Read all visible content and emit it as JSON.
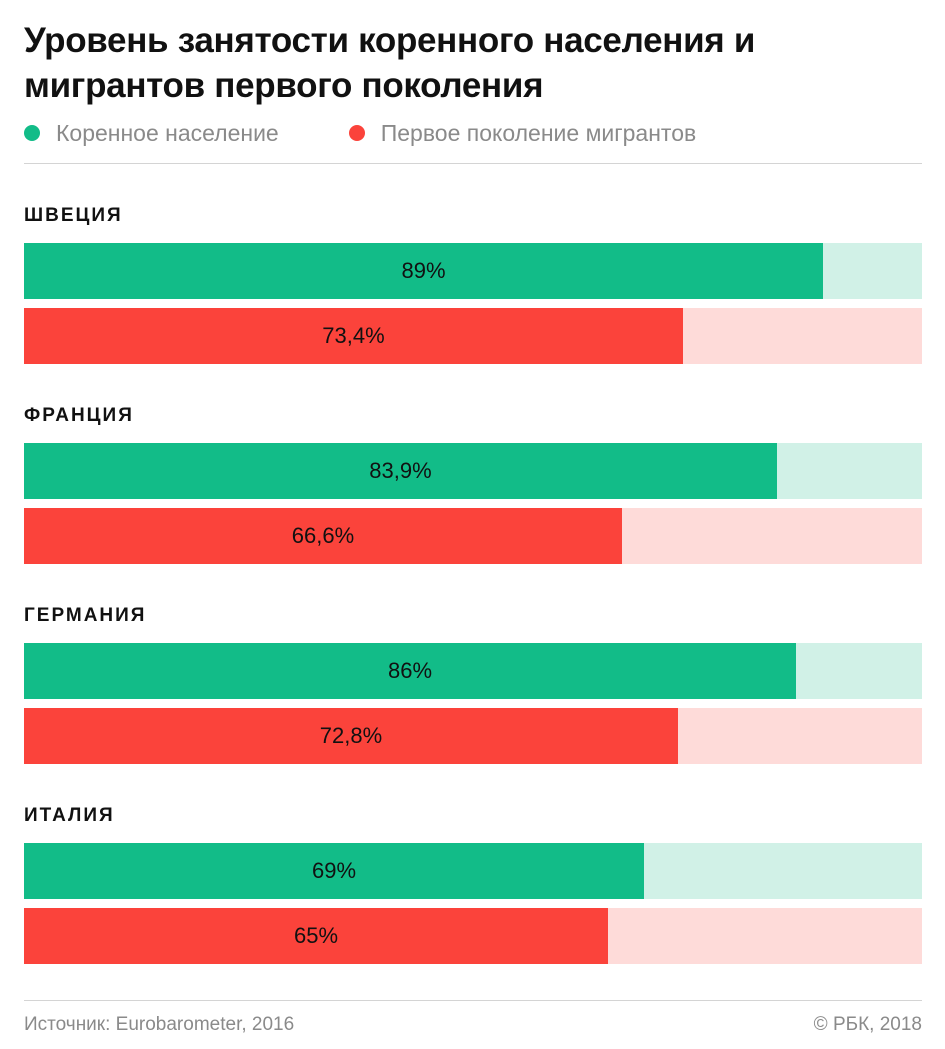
{
  "title": "Уровень занятости коренного населения и мигрантов первого поколения",
  "legend": [
    {
      "label": "Коренное население",
      "color": "#12bc88"
    },
    {
      "label": "Первое поколение мигрантов",
      "color": "#fb433b"
    }
  ],
  "chart_data": {
    "type": "bar",
    "orientation": "horizontal",
    "title": "Уровень занятости коренного населения и мигрантов первого поколения",
    "categories": [
      "ШВЕЦИЯ",
      "ФРАНЦИЯ",
      "ГЕРМАНИЯ",
      "ИТАЛИЯ"
    ],
    "series": [
      {
        "name": "Коренное население",
        "color": "#12bc88",
        "track_color": "#d1f1e7",
        "values": [
          89,
          83.9,
          86,
          69
        ],
        "labels": [
          "89%",
          "83,9%",
          "86%",
          "69%"
        ]
      },
      {
        "name": "Первое поколение мигрантов",
        "color": "#fb433b",
        "track_color": "#fedbd9",
        "values": [
          73.4,
          66.6,
          72.8,
          65
        ],
        "labels": [
          "73,4%",
          "66,6%",
          "72,8%",
          "65%"
        ]
      }
    ],
    "xlim": [
      0,
      100
    ],
    "grid": false,
    "legend_position": "top-left"
  },
  "source": "Источник: Eurobarometer, 2016",
  "copyright": "© РБК, 2018"
}
